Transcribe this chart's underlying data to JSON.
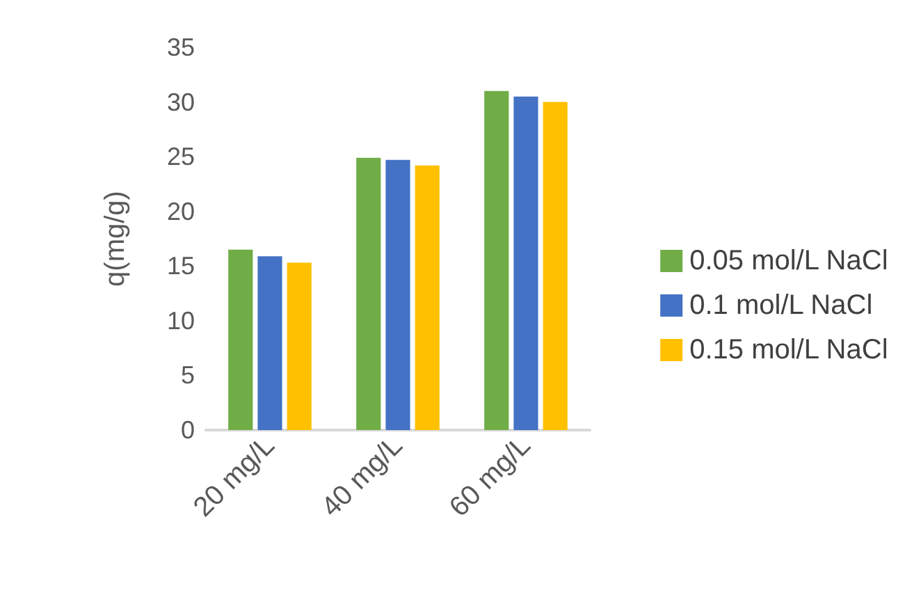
{
  "chart_data": {
    "type": "bar",
    "ylabel": "q(mg/g)",
    "categories": [
      "20 mg/L",
      "40 mg/L",
      "60 mg/L"
    ],
    "series": [
      {
        "name": "0.05 mol/L NaCl",
        "color": "#70ad47",
        "values": [
          16.5,
          24.9,
          31.0
        ]
      },
      {
        "name": "0.1 mol/L NaCl",
        "color": "#4472c4",
        "values": [
          15.9,
          24.7,
          30.5
        ]
      },
      {
        "name": "0.15 mol/L NaCl",
        "color": "#ffc000",
        "values": [
          15.3,
          24.2,
          30.0
        ]
      }
    ],
    "ylim": [
      0,
      35
    ],
    "yticks": [
      0,
      5,
      10,
      15,
      20,
      25,
      30,
      35
    ],
    "grid": false,
    "legend": "right"
  }
}
